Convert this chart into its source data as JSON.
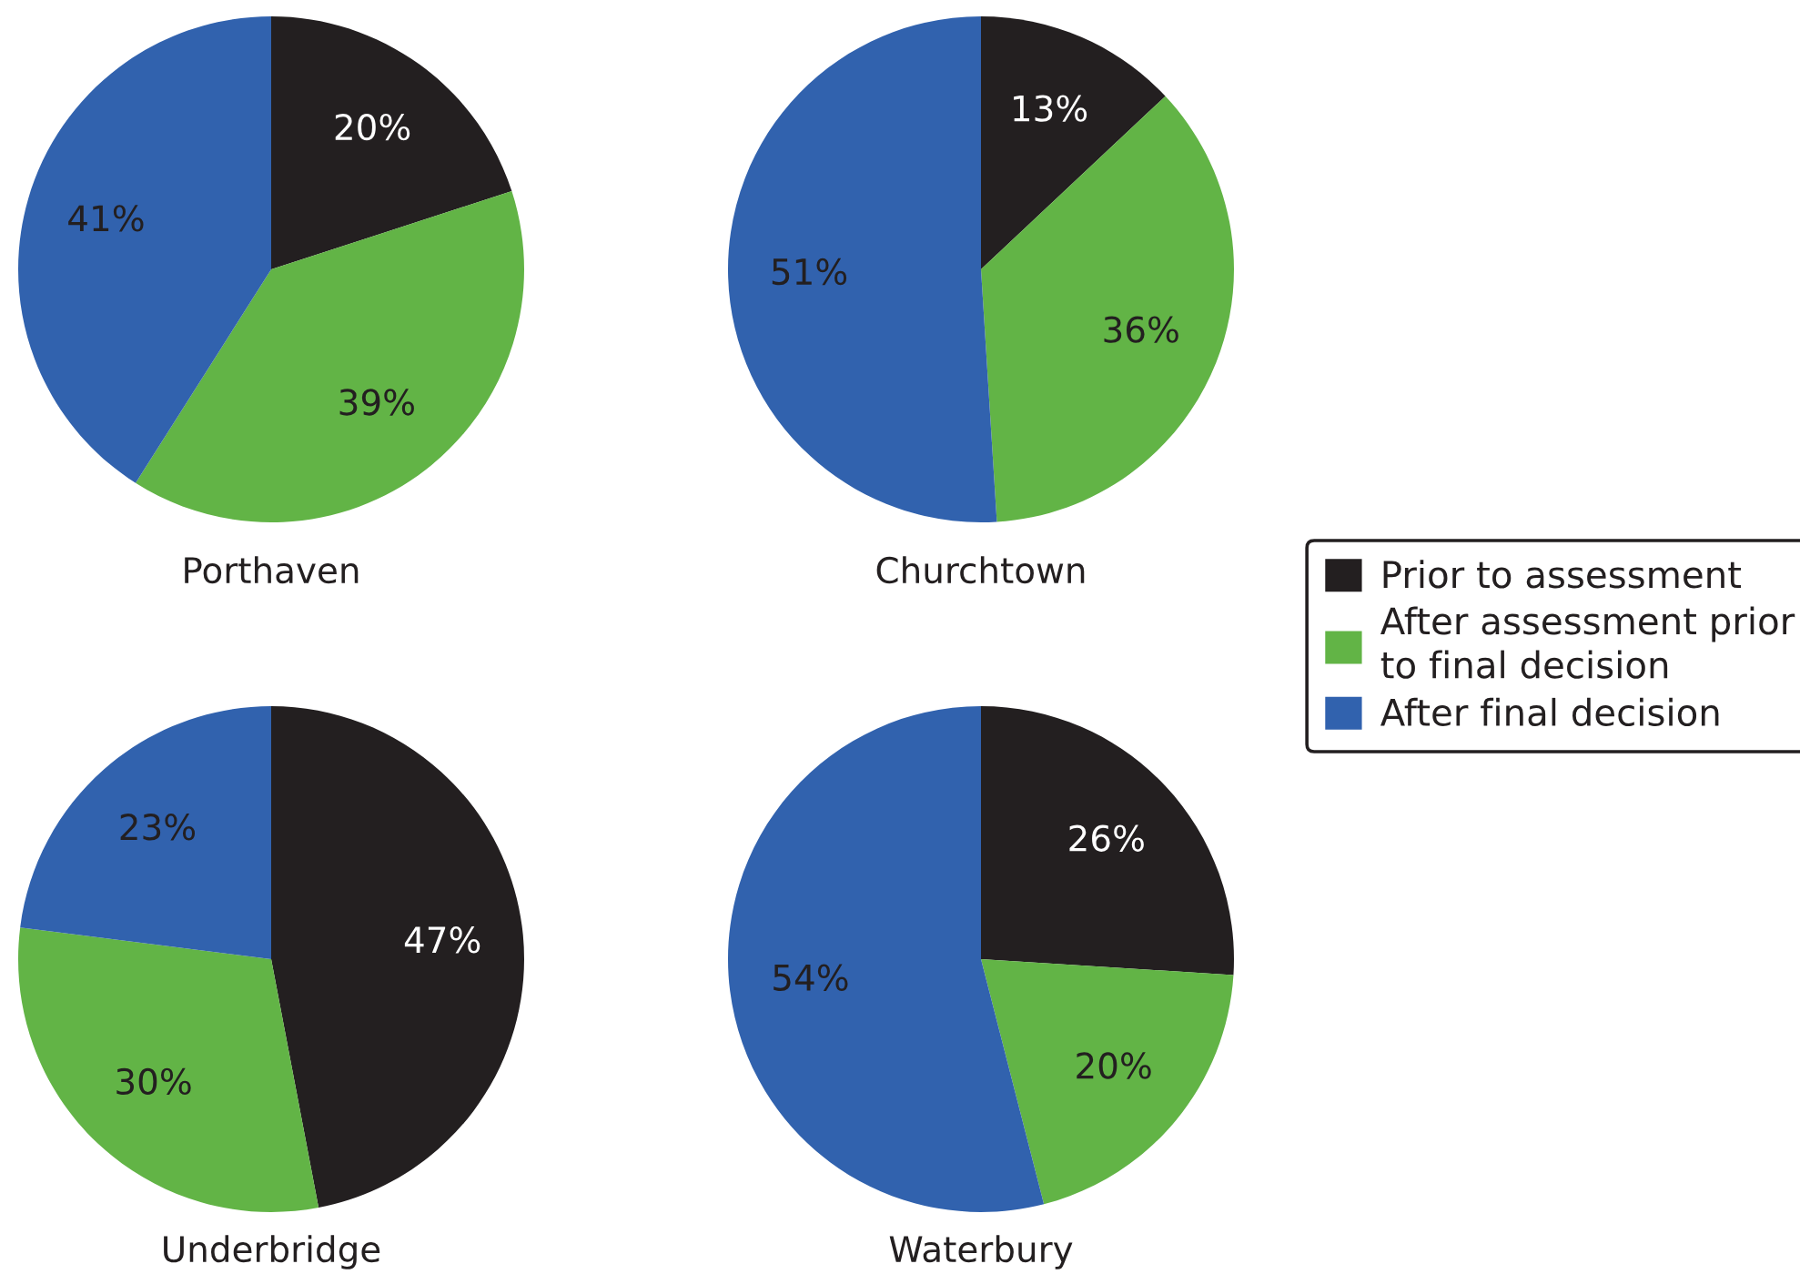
{
  "chart_data": [
    {
      "type": "pie",
      "title": "Porthaven",
      "categories": [
        "Prior to assessment",
        "After assessment prior to final decision",
        "After final decision"
      ],
      "values": [
        20,
        39,
        41
      ],
      "colors": [
        "#231f20",
        "#62b446",
        "#3162ae"
      ],
      "value_labels": [
        "20%",
        "39%",
        "41%"
      ],
      "legend": "right"
    },
    {
      "type": "pie",
      "title": "Churchtown",
      "categories": [
        null,
        null,
        null
      ],
      "values": [
        13,
        36,
        51
      ],
      "colors": [
        "#231f20",
        "#62b446",
        "#3162ae"
      ],
      "value_labels": [
        "13%",
        "36%",
        "51%"
      ]
    },
    {
      "type": "pie",
      "title": "Underbridge",
      "categories": [
        null,
        null,
        null
      ],
      "values": [
        47,
        30,
        23
      ],
      "colors": [
        "#231f20",
        "#62b446",
        "#3162ae"
      ],
      "value_labels": [
        "47%",
        "30%",
        "23%"
      ]
    },
    {
      "type": "pie",
      "title": "Waterbury",
      "categories": [
        null,
        null,
        null
      ],
      "values": [
        26,
        20,
        54
      ],
      "colors": [
        "#231f20",
        "#62b446",
        "#3162ae"
      ],
      "value_labels": [
        "26%",
        "20%",
        "54%"
      ]
    }
  ]
}
